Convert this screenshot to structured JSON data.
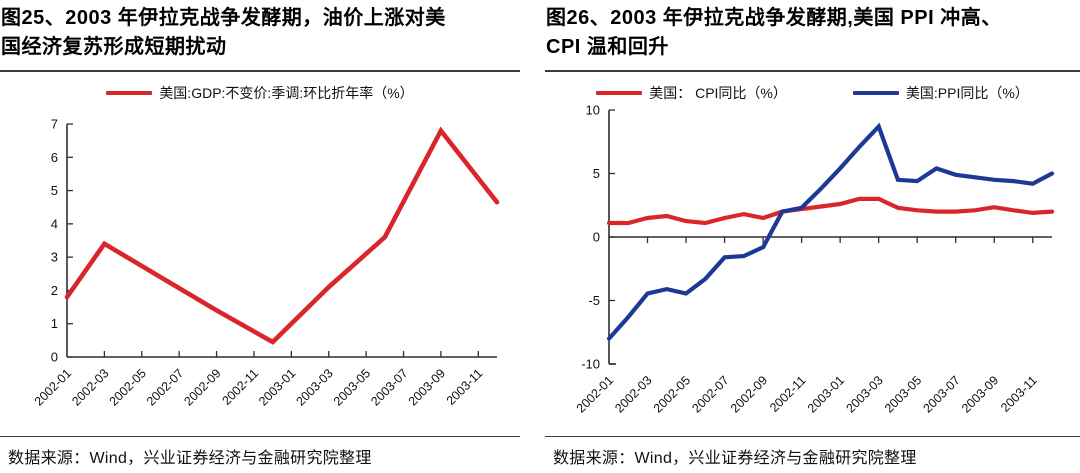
{
  "panels": [
    {
      "title_lines": [
        "图25、2003 年伊拉克战争发酵期，油价上涨对美",
        "国经济复苏形成短期扰动"
      ],
      "source": "数据来源：Wind，兴业证券经济与金融研究院整理"
    },
    {
      "title_lines": [
        "图26、2003 年伊拉克战争发酵期,美国 PPI 冲高、",
        "CPI 温和回升"
      ],
      "source": "数据来源：Wind，兴业证券经济与金融研究院整理"
    }
  ],
  "colors": {
    "red": "#d9262b",
    "blue": "#1c3996",
    "axis": "#2f2f2f",
    "rule": "#3c3c3c"
  },
  "chart_data": [
    {
      "type": "line",
      "title": "图25、2003 年伊拉克战争发酵期，油价上涨对美国经济复苏形成短期扰动",
      "xlabel": "",
      "ylabel": "",
      "ylim": [
        0,
        7
      ],
      "y_ticks": [
        0,
        1,
        2,
        3,
        4,
        5,
        6,
        7
      ],
      "grid": false,
      "legend_position": "top-center",
      "x": [
        "2002-01",
        "2002-02",
        "2002-03",
        "2002-04",
        "2002-05",
        "2002-06",
        "2002-07",
        "2002-08",
        "2002-09",
        "2002-10",
        "2002-11",
        "2002-12",
        "2003-01",
        "2003-02",
        "2003-03",
        "2003-04",
        "2003-05",
        "2003-06",
        "2003-07",
        "2003-08",
        "2003-09",
        "2003-10",
        "2003-11",
        "2003-12"
      ],
      "x_tick_labels": [
        "2002-01",
        "2002-03",
        "2002-05",
        "2002-07",
        "2002-09",
        "2002-11",
        "2003-01",
        "2003-03",
        "2003-05",
        "2003-07",
        "2003-09",
        "2003-11"
      ],
      "series": [
        {
          "id": "gdp",
          "name": "美国:GDP:不变价:季调:环比折年率（%）",
          "color": "#d9262b",
          "points": [
            [
              "2002-01",
              1.8
            ],
            [
              "2002-03",
              3.4
            ],
            [
              "2002-06",
              2.4
            ],
            [
              "2002-09",
              1.4
            ],
            [
              "2002-12",
              0.45
            ],
            [
              "2003-03",
              2.1
            ],
            [
              "2003-06",
              3.6
            ],
            [
              "2003-09",
              6.8
            ],
            [
              "2003-12",
              4.65
            ]
          ]
        }
      ]
    },
    {
      "type": "line",
      "title": "图26、2003 年伊拉克战争发酵期,美国 PPI 冲高、CPI 温和回升",
      "xlabel": "",
      "ylabel": "",
      "ylim": [
        -10,
        10
      ],
      "y_ticks": [
        -10,
        -5,
        0,
        5,
        10
      ],
      "grid": false,
      "legend_position": "top-center",
      "x": [
        "2002-01",
        "2002-02",
        "2002-03",
        "2002-04",
        "2002-05",
        "2002-06",
        "2002-07",
        "2002-08",
        "2002-09",
        "2002-10",
        "2002-11",
        "2002-12",
        "2003-01",
        "2003-02",
        "2003-03",
        "2003-04",
        "2003-05",
        "2003-06",
        "2003-07",
        "2003-08",
        "2003-09",
        "2003-10",
        "2003-11",
        "2003-12"
      ],
      "x_tick_labels": [
        "2002-01",
        "2002-03",
        "2002-05",
        "2002-07",
        "2002-09",
        "2002-11",
        "2003-01",
        "2003-03",
        "2003-05",
        "2003-07",
        "2003-09",
        "2003-11"
      ],
      "series": [
        {
          "id": "cpi",
          "name": "美国： CPI同比（%）",
          "color": "#d9262b",
          "values": [
            1.1,
            1.1,
            1.5,
            1.65,
            1.25,
            1.1,
            1.5,
            1.8,
            1.5,
            2.0,
            2.2,
            2.4,
            2.6,
            3.0,
            3.0,
            2.3,
            2.1,
            2.0,
            2.0,
            2.1,
            2.35,
            2.1,
            1.9,
            2.0
          ]
        },
        {
          "id": "ppi",
          "name": "美国:PPI同比（%）",
          "color": "#1c3996",
          "values": [
            -8.0,
            -6.3,
            -4.45,
            -4.1,
            -4.45,
            -3.3,
            -1.6,
            -1.5,
            -0.8,
            2.0,
            2.3,
            3.8,
            5.4,
            7.1,
            8.7,
            4.5,
            4.4,
            5.4,
            4.9,
            4.7,
            4.5,
            4.4,
            4.2,
            5.0
          ]
        }
      ]
    }
  ]
}
